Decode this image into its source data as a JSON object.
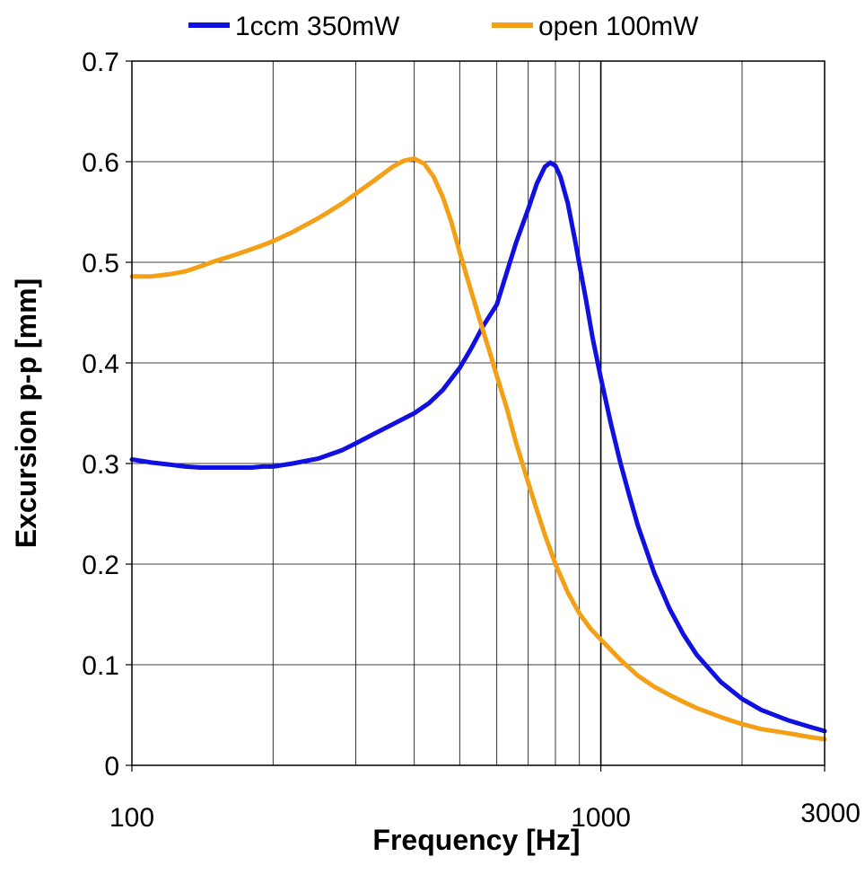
{
  "chart_data": {
    "type": "line",
    "xlabel": "Frequency [Hz]",
    "ylabel": "Excursion p-p [mm]",
    "x_scale": "log",
    "xlim": [
      100,
      3000
    ],
    "ylim": [
      0,
      0.7
    ],
    "x_ticks": [
      100,
      1000,
      3000
    ],
    "x_tick_labels": [
      "100",
      "1000",
      "3000"
    ],
    "y_ticks": [
      0,
      0.1,
      0.2,
      0.3,
      0.4,
      0.5,
      0.6,
      0.7
    ],
    "y_tick_labels": [
      "0",
      "0.1",
      "0.2",
      "0.3",
      "0.4",
      "0.5",
      "0.6",
      "0.7"
    ],
    "x_gridlines": [
      200,
      300,
      400,
      500,
      600,
      700,
      800,
      900,
      1000,
      2000
    ],
    "grid": true,
    "legend_position": "top",
    "series": [
      {
        "name": "1ccm 350mW",
        "color": "#1010e0",
        "x": [
          100,
          110,
          120,
          130,
          140,
          150,
          160,
          170,
          180,
          190,
          200,
          220,
          250,
          280,
          300,
          330,
          360,
          400,
          430,
          460,
          500,
          530,
          560,
          600,
          630,
          660,
          700,
          730,
          760,
          780,
          800,
          820,
          850,
          880,
          900,
          930,
          960,
          1000,
          1050,
          1100,
          1150,
          1200,
          1300,
          1400,
          1500,
          1600,
          1800,
          2000,
          2200,
          2500,
          2800,
          3000
        ],
        "y": [
          0.304,
          0.301,
          0.299,
          0.297,
          0.296,
          0.296,
          0.296,
          0.296,
          0.296,
          0.297,
          0.297,
          0.3,
          0.305,
          0.313,
          0.32,
          0.33,
          0.339,
          0.35,
          0.36,
          0.373,
          0.395,
          0.415,
          0.436,
          0.458,
          0.49,
          0.52,
          0.553,
          0.578,
          0.595,
          0.599,
          0.596,
          0.585,
          0.559,
          0.523,
          0.498,
          0.462,
          0.425,
          0.385,
          0.34,
          0.301,
          0.268,
          0.238,
          0.191,
          0.156,
          0.13,
          0.11,
          0.083,
          0.066,
          0.055,
          0.045,
          0.038,
          0.034
        ]
      },
      {
        "name": "open 100mW",
        "color": "#f4a016",
        "x": [
          100,
          110,
          120,
          130,
          140,
          150,
          160,
          170,
          180,
          190,
          200,
          220,
          250,
          280,
          300,
          330,
          360,
          380,
          400,
          420,
          440,
          460,
          480,
          500,
          530,
          560,
          580,
          600,
          630,
          660,
          700,
          730,
          760,
          800,
          850,
          900,
          950,
          1000,
          1100,
          1200,
          1300,
          1400,
          1500,
          1600,
          1800,
          2000,
          2200,
          2500,
          2800,
          3000
        ],
        "y": [
          0.486,
          0.486,
          0.488,
          0.491,
          0.496,
          0.501,
          0.505,
          0.509,
          0.513,
          0.517,
          0.521,
          0.53,
          0.544,
          0.558,
          0.568,
          0.582,
          0.595,
          0.601,
          0.603,
          0.598,
          0.585,
          0.565,
          0.54,
          0.51,
          0.47,
          0.433,
          0.41,
          0.387,
          0.355,
          0.32,
          0.281,
          0.254,
          0.229,
          0.2,
          0.172,
          0.151,
          0.136,
          0.125,
          0.105,
          0.089,
          0.078,
          0.07,
          0.063,
          0.057,
          0.048,
          0.041,
          0.036,
          0.032,
          0.028,
          0.026
        ]
      }
    ]
  }
}
